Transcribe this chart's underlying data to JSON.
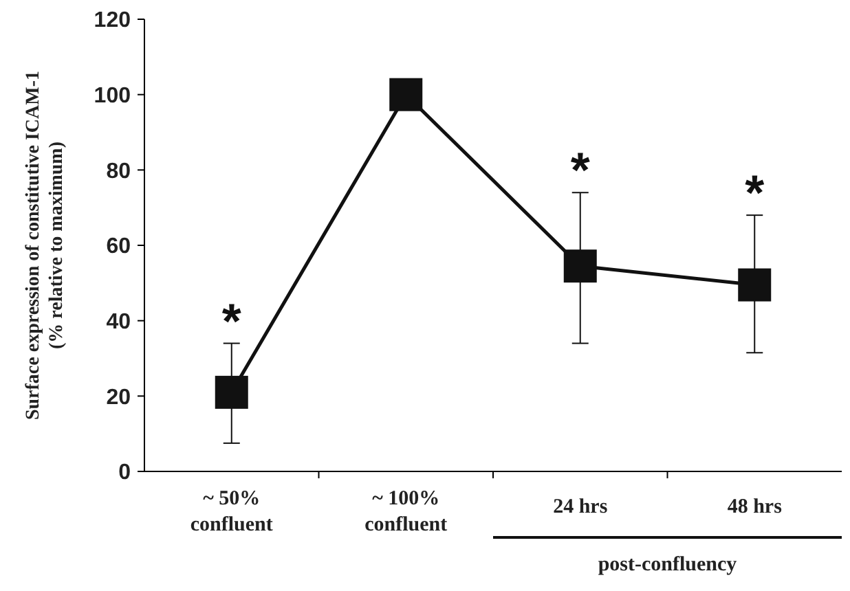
{
  "chart_data": {
    "type": "line",
    "ylabel": "Surface expression of constitutive ICAM-1\n(% relative to maximum)",
    "categories": [
      "~ 50%\nconfluent",
      "~ 100%\nconfluent",
      "24 hrs",
      "48 hrs"
    ],
    "series": [
      {
        "color": "#111111",
        "values": [
          21,
          100,
          54.5,
          49.5
        ],
        "errors": [
          [
            7.5,
            34
          ],
          null,
          [
            34,
            74
          ],
          [
            31.5,
            68
          ]
        ]
      }
    ],
    "ylim": [
      0,
      120
    ],
    "yticks": [
      0,
      20,
      40,
      60,
      80,
      100,
      120
    ],
    "grid": false,
    "marker": "square",
    "line_style": "solid",
    "annotations": [
      {
        "text": "*",
        "x": "~ 50%\nconfluent",
        "y": 34
      },
      {
        "text": "*",
        "x": "24 hrs",
        "y": 74
      },
      {
        "text": "*",
        "x": "48 hrs",
        "y": 68
      },
      "post-confluency"
    ]
  }
}
